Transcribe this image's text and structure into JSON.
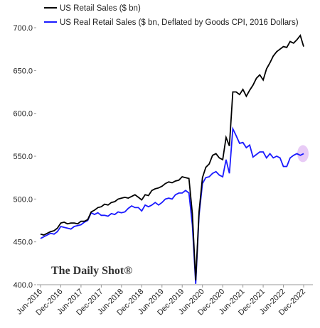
{
  "chart_data": {
    "type": "line",
    "watermark": "The Daily Shot®",
    "x": [
      "Jun-2016",
      null,
      null,
      null,
      null,
      null,
      "Dec-2016",
      null,
      null,
      null,
      null,
      null,
      "Jun-2017",
      null,
      null,
      null,
      null,
      null,
      "Dec-2017",
      null,
      null,
      null,
      null,
      null,
      "Jun-2018",
      null,
      null,
      null,
      null,
      null,
      "Dec-2018",
      null,
      null,
      null,
      null,
      null,
      "Jun-2019",
      null,
      null,
      null,
      null,
      null,
      "Dec-2019",
      null,
      null,
      null,
      null,
      null,
      "Jun-2020",
      null,
      null,
      null,
      null,
      null,
      "Dec-2020",
      null,
      null,
      null,
      null,
      null,
      "Jun-2021",
      null,
      null,
      null,
      null,
      null,
      "Dec-2021",
      null,
      null,
      null,
      null,
      null,
      "Jun-2022",
      null,
      null,
      null,
      null,
      null,
      "Dec-2022"
    ],
    "series": [
      {
        "name": "US Retail Sales ($ bn)",
        "color": "#000000",
        "values": [
          459,
          458,
          460,
          462,
          463,
          466,
          472,
          473,
          471,
          472,
          472,
          471,
          474,
          474,
          476,
          485,
          487,
          490,
          491,
          494,
          493,
          496,
          497,
          500,
          501,
          502,
          501,
          503,
          505,
          502,
          499,
          505,
          504,
          510,
          512,
          513,
          515,
          518,
          520,
          519,
          521,
          522,
          526,
          525,
          524,
          483,
          405,
          485,
          525,
          537,
          541,
          551,
          553,
          548,
          546,
          572,
          562,
          625,
          625,
          622,
          628,
          620,
          627,
          633,
          641,
          645,
          639,
          652,
          659,
          667,
          672,
          675,
          678,
          677,
          684,
          682,
          686,
          691,
          678
        ]
      },
      {
        "name": "US Real Retail Sales ($ bn, Deflated by Goods CPI, 2016 Dollars)",
        "color": "#1a1aff",
        "values": [
          454,
          456,
          458,
          460,
          459,
          462,
          468,
          467,
          466,
          465,
          468,
          469,
          470,
          473,
          475,
          484,
          482,
          484,
          481,
          481,
          480,
          483,
          482,
          485,
          484,
          485,
          489,
          492,
          490,
          490,
          486,
          493,
          491,
          493,
          496,
          493,
          496,
          500,
          501,
          500,
          505,
          507,
          507,
          510,
          507,
          470,
          401,
          481,
          518,
          525,
          526,
          530,
          532,
          528,
          526,
          546,
          530,
          582,
          574,
          565,
          566,
          560,
          563,
          549,
          552,
          555,
          555,
          548,
          553,
          548,
          550,
          548,
          538,
          538,
          548,
          551,
          553,
          551,
          553
        ]
      }
    ],
    "ylim": [
      400,
      710
    ],
    "yticks": [
      {
        "value": 400,
        "label": "400.0"
      },
      {
        "value": 450,
        "label": "450.0"
      },
      {
        "value": 500,
        "label": "500.0"
      },
      {
        "value": 550,
        "label": "550.0"
      },
      {
        "value": 600,
        "label": "600.0"
      },
      {
        "value": 650,
        "label": "650.0"
      },
      {
        "value": 700,
        "label": "700.0"
      }
    ],
    "grid": false
  }
}
